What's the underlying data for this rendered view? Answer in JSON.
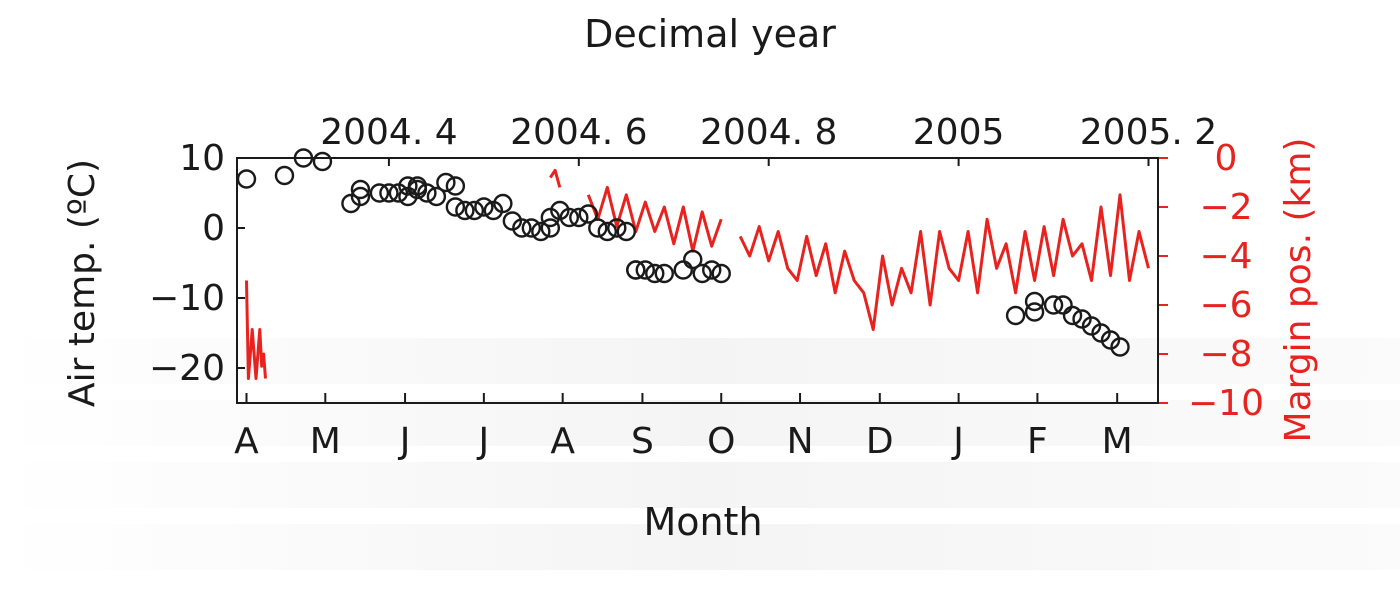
{
  "chart_data": {
    "type": "scatter",
    "top_axis_title": "Decimal year",
    "top_ticks": [
      "2004. 4",
      "2004. 6",
      "2004. 8",
      "2005",
      "2005. 2"
    ],
    "top_tick_values": [
      2004.4,
      2004.6,
      2004.8,
      2005.0,
      2005.2
    ],
    "xlabel": "Month",
    "x_ticks": [
      "A",
      "M",
      "J",
      "J",
      "A",
      "S",
      "O",
      "N",
      "D",
      "J",
      "F",
      "M"
    ],
    "x_tick_values": [
      2004.25,
      2004.333,
      2004.417,
      2004.5,
      2004.583,
      2004.667,
      2004.75,
      2004.833,
      2004.917,
      2005.0,
      2005.083,
      2005.167
    ],
    "xlim": [
      2004.24,
      2005.21
    ],
    "ylabel_left": "Air temp. (ºC)",
    "ylim_left": [
      -25,
      10
    ],
    "yticks_left": [
      "10",
      "0",
      "−10",
      "−20"
    ],
    "ytick_values_left": [
      10,
      0,
      -10,
      -20
    ],
    "ylabel_right": "Margin pos. (km)",
    "ylim_right": [
      -10,
      0
    ],
    "yticks_right": [
      "0",
      "−2",
      "−4",
      "−6",
      "−8",
      "−10"
    ],
    "ytick_values_right": [
      0,
      -2,
      -4,
      -6,
      -8,
      -10
    ],
    "colors": {
      "air_temp": "#1a1a1a",
      "margin": "#e8231f"
    },
    "series": [
      {
        "axis": "left",
        "marker": "open-circle",
        "x": [
          2004.25,
          2004.29,
          2004.31,
          2004.33,
          2004.36,
          2004.37,
          2004.37,
          2004.39,
          2004.4,
          2004.41,
          2004.42,
          2004.42,
          2004.43,
          2004.43,
          2004.44,
          2004.45,
          2004.46,
          2004.47,
          2004.47,
          2004.48,
          2004.49,
          2004.5,
          2004.51,
          2004.52,
          2004.53,
          2004.54,
          2004.55,
          2004.56,
          2004.57,
          2004.57,
          2004.58,
          2004.59,
          2004.6,
          2004.61,
          2004.62,
          2004.63,
          2004.64,
          2004.65,
          2004.66,
          2004.66,
          2004.67,
          2004.68,
          2004.69,
          2004.71,
          2004.72,
          2004.73,
          2004.74,
          2004.75,
          2005.06,
          2005.08,
          2005.08,
          2005.1,
          2005.11,
          2005.12,
          2005.13,
          2005.14,
          2005.15,
          2005.16,
          2005.17
        ],
        "y": [
          7,
          7.5,
          10,
          9.5,
          3.5,
          4.5,
          5.5,
          5,
          5,
          5,
          4.5,
          6,
          5.5,
          6,
          5,
          4.5,
          6.5,
          6,
          3,
          2.5,
          2.5,
          3,
          2.5,
          3.5,
          1,
          0,
          0,
          -0.5,
          0,
          1.5,
          2.5,
          1.5,
          1.5,
          2,
          0,
          -0.5,
          0,
          -0.5,
          -6,
          -6,
          -6,
          -6.5,
          -6.5,
          -6,
          -4.5,
          -6.5,
          -6,
          -6.5,
          -12.5,
          -12,
          -10.5,
          -11,
          -11,
          -12.5,
          -13,
          -14,
          -15,
          -16,
          -17
        ]
      },
      {
        "axis": "right",
        "line": true,
        "x": [
          2004.25,
          2004.252,
          2004.256,
          2004.26,
          2004.262,
          2004.264,
          2004.266,
          2004.268,
          2004.27,
          null,
          2004.57,
          2004.575,
          2004.58,
          null,
          2004.61,
          2004.62,
          2004.63,
          2004.64,
          2004.65,
          2004.66,
          2004.67,
          2004.68,
          2004.69,
          2004.7,
          2004.71,
          2004.72,
          2004.73,
          2004.74,
          2004.75,
          null,
          2004.77,
          2004.78,
          2004.79,
          2004.8,
          2004.81,
          2004.82,
          2004.83,
          2004.84,
          2004.85,
          2004.86,
          2004.87,
          2004.88,
          2004.89,
          2004.9,
          2004.91,
          2004.92,
          2004.93,
          2004.94,
          2004.95,
          2004.96,
          2004.97,
          2004.98,
          2004.99,
          2005.0,
          2005.01,
          2005.02,
          2005.03,
          2005.04,
          2005.05,
          2005.06,
          2005.07,
          2005.08,
          2005.09,
          2005.1,
          2005.11,
          2005.12,
          2005.13,
          2005.14,
          2005.15,
          2005.16,
          2005.17,
          2005.18,
          2005.19,
          2005.2
        ],
        "y": [
          -5,
          -9,
          -7,
          -9,
          -8,
          -7,
          -8.5,
          -8,
          -9,
          null,
          -0.8,
          -0.5,
          -1.2,
          null,
          -1.5,
          -2.5,
          -1.2,
          -2.8,
          -1.5,
          -3,
          -1.8,
          -3,
          -2,
          -3.5,
          -2,
          -3.8,
          -2.2,
          -3.6,
          -2.5,
          null,
          -3.2,
          -4,
          -2.8,
          -4.2,
          -3,
          -4.5,
          -5,
          -3.2,
          -4.8,
          -3.5,
          -5.5,
          -3.8,
          -5,
          -5.5,
          -7,
          -4,
          -6,
          -4.5,
          -5.5,
          -3,
          -6,
          -3,
          -4.5,
          -5,
          -3,
          -5.5,
          -2.5,
          -4.5,
          -3.5,
          -5.5,
          -3,
          -5,
          -2.8,
          -4.8,
          -2.5,
          -4,
          -3.5,
          -5,
          -2,
          -4.8,
          -1.5,
          -5,
          -3,
          -4.5
        ]
      }
    ]
  }
}
